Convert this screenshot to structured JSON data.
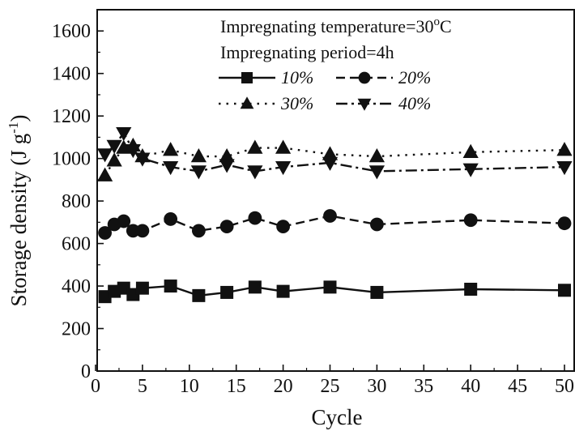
{
  "chart_data": {
    "type": "line",
    "title": "",
    "xlabel": "Cycle",
    "ylabel": "Storage density (J g⁻¹)",
    "ylabel_parts": {
      "main": "Storage density (J g",
      "sup": "-1",
      "close": ")"
    },
    "xlim": [
      0,
      50
    ],
    "ylim": [
      0,
      1700
    ],
    "xticks": [
      0,
      5,
      10,
      15,
      20,
      25,
      30,
      35,
      40,
      45,
      50
    ],
    "yticks": [
      0,
      200,
      400,
      600,
      800,
      1000,
      1200,
      1400,
      1600
    ],
    "grid": false,
    "annotations": [
      {
        "text": "Impregnating temperature=30",
        "sup": "o",
        "after": "C"
      },
      {
        "text": "Impregnating period=4h"
      }
    ],
    "legend_position": "top-right",
    "series": [
      {
        "name": "10%",
        "marker": "square",
        "line_style": "solid",
        "x": [
          1,
          2,
          3,
          4,
          5,
          8,
          11,
          14,
          17,
          20,
          25,
          30,
          40,
          50
        ],
        "y": [
          350,
          375,
          390,
          360,
          390,
          400,
          355,
          370,
          395,
          375,
          395,
          370,
          385,
          380
        ]
      },
      {
        "name": "20%",
        "marker": "circle",
        "line_style": "dashed",
        "x": [
          1,
          2,
          3,
          4,
          5,
          8,
          11,
          14,
          17,
          20,
          25,
          30,
          40,
          50
        ],
        "y": [
          650,
          690,
          705,
          660,
          660,
          715,
          660,
          680,
          720,
          680,
          730,
          690,
          710,
          695
        ]
      },
      {
        "name": "30%",
        "marker": "triangle-up",
        "line_style": "dotted",
        "x": [
          1,
          2,
          3,
          4,
          5,
          8,
          11,
          14,
          17,
          20,
          25,
          30,
          40,
          50
        ],
        "y": [
          920,
          990,
          1050,
          1060,
          1010,
          1040,
          1010,
          1010,
          1050,
          1050,
          1020,
          1010,
          1030,
          1040
        ]
      },
      {
        "name": "40%",
        "marker": "triangle-down",
        "line_style": "dashdot",
        "x": [
          1,
          2,
          3,
          4,
          5,
          8,
          11,
          14,
          17,
          20,
          25,
          30,
          40,
          50
        ],
        "y": [
          1020,
          1060,
          1120,
          1040,
          1000,
          960,
          940,
          970,
          940,
          960,
          980,
          940,
          950,
          960
        ]
      }
    ]
  }
}
